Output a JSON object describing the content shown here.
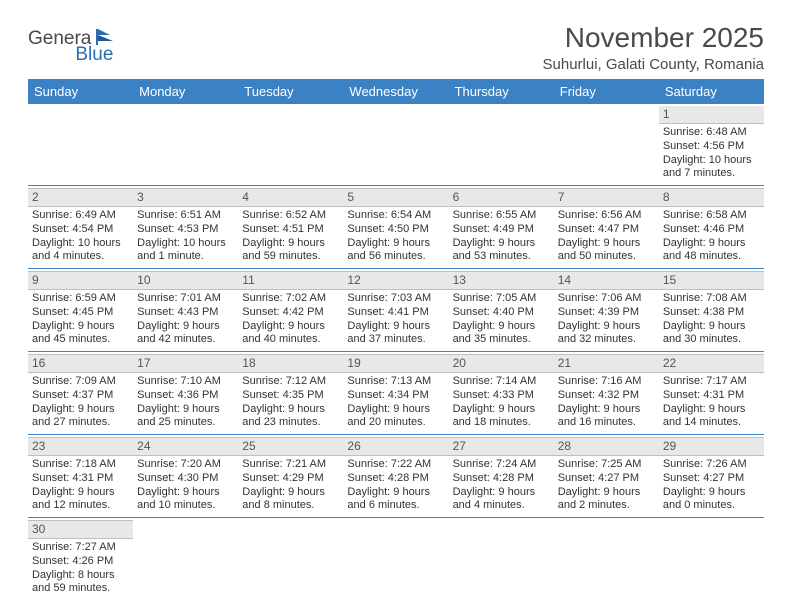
{
  "logo": {
    "text1": "Genera",
    "text2": "Blue"
  },
  "title": "November 2025",
  "location": "Suhurlui, Galati County, Romania",
  "colors": {
    "header_bg": "#3b82c4",
    "header_fg": "#ffffff",
    "daynum_bg": "#e8e8e8",
    "border": "#3b82c4",
    "text": "#333333"
  },
  "day_headers": [
    "Sunday",
    "Monday",
    "Tuesday",
    "Wednesday",
    "Thursday",
    "Friday",
    "Saturday"
  ],
  "weeks": [
    [
      null,
      null,
      null,
      null,
      null,
      null,
      {
        "n": "1",
        "sr": "Sunrise: 6:48 AM",
        "ss": "Sunset: 4:56 PM",
        "d1": "Daylight: 10 hours",
        "d2": "and 7 minutes."
      }
    ],
    [
      {
        "n": "2",
        "sr": "Sunrise: 6:49 AM",
        "ss": "Sunset: 4:54 PM",
        "d1": "Daylight: 10 hours",
        "d2": "and 4 minutes."
      },
      {
        "n": "3",
        "sr": "Sunrise: 6:51 AM",
        "ss": "Sunset: 4:53 PM",
        "d1": "Daylight: 10 hours",
        "d2": "and 1 minute."
      },
      {
        "n": "4",
        "sr": "Sunrise: 6:52 AM",
        "ss": "Sunset: 4:51 PM",
        "d1": "Daylight: 9 hours",
        "d2": "and 59 minutes."
      },
      {
        "n": "5",
        "sr": "Sunrise: 6:54 AM",
        "ss": "Sunset: 4:50 PM",
        "d1": "Daylight: 9 hours",
        "d2": "and 56 minutes."
      },
      {
        "n": "6",
        "sr": "Sunrise: 6:55 AM",
        "ss": "Sunset: 4:49 PM",
        "d1": "Daylight: 9 hours",
        "d2": "and 53 minutes."
      },
      {
        "n": "7",
        "sr": "Sunrise: 6:56 AM",
        "ss": "Sunset: 4:47 PM",
        "d1": "Daylight: 9 hours",
        "d2": "and 50 minutes."
      },
      {
        "n": "8",
        "sr": "Sunrise: 6:58 AM",
        "ss": "Sunset: 4:46 PM",
        "d1": "Daylight: 9 hours",
        "d2": "and 48 minutes."
      }
    ],
    [
      {
        "n": "9",
        "sr": "Sunrise: 6:59 AM",
        "ss": "Sunset: 4:45 PM",
        "d1": "Daylight: 9 hours",
        "d2": "and 45 minutes."
      },
      {
        "n": "10",
        "sr": "Sunrise: 7:01 AM",
        "ss": "Sunset: 4:43 PM",
        "d1": "Daylight: 9 hours",
        "d2": "and 42 minutes."
      },
      {
        "n": "11",
        "sr": "Sunrise: 7:02 AM",
        "ss": "Sunset: 4:42 PM",
        "d1": "Daylight: 9 hours",
        "d2": "and 40 minutes."
      },
      {
        "n": "12",
        "sr": "Sunrise: 7:03 AM",
        "ss": "Sunset: 4:41 PM",
        "d1": "Daylight: 9 hours",
        "d2": "and 37 minutes."
      },
      {
        "n": "13",
        "sr": "Sunrise: 7:05 AM",
        "ss": "Sunset: 4:40 PM",
        "d1": "Daylight: 9 hours",
        "d2": "and 35 minutes."
      },
      {
        "n": "14",
        "sr": "Sunrise: 7:06 AM",
        "ss": "Sunset: 4:39 PM",
        "d1": "Daylight: 9 hours",
        "d2": "and 32 minutes."
      },
      {
        "n": "15",
        "sr": "Sunrise: 7:08 AM",
        "ss": "Sunset: 4:38 PM",
        "d1": "Daylight: 9 hours",
        "d2": "and 30 minutes."
      }
    ],
    [
      {
        "n": "16",
        "sr": "Sunrise: 7:09 AM",
        "ss": "Sunset: 4:37 PM",
        "d1": "Daylight: 9 hours",
        "d2": "and 27 minutes."
      },
      {
        "n": "17",
        "sr": "Sunrise: 7:10 AM",
        "ss": "Sunset: 4:36 PM",
        "d1": "Daylight: 9 hours",
        "d2": "and 25 minutes."
      },
      {
        "n": "18",
        "sr": "Sunrise: 7:12 AM",
        "ss": "Sunset: 4:35 PM",
        "d1": "Daylight: 9 hours",
        "d2": "and 23 minutes."
      },
      {
        "n": "19",
        "sr": "Sunrise: 7:13 AM",
        "ss": "Sunset: 4:34 PM",
        "d1": "Daylight: 9 hours",
        "d2": "and 20 minutes."
      },
      {
        "n": "20",
        "sr": "Sunrise: 7:14 AM",
        "ss": "Sunset: 4:33 PM",
        "d1": "Daylight: 9 hours",
        "d2": "and 18 minutes."
      },
      {
        "n": "21",
        "sr": "Sunrise: 7:16 AM",
        "ss": "Sunset: 4:32 PM",
        "d1": "Daylight: 9 hours",
        "d2": "and 16 minutes."
      },
      {
        "n": "22",
        "sr": "Sunrise: 7:17 AM",
        "ss": "Sunset: 4:31 PM",
        "d1": "Daylight: 9 hours",
        "d2": "and 14 minutes."
      }
    ],
    [
      {
        "n": "23",
        "sr": "Sunrise: 7:18 AM",
        "ss": "Sunset: 4:31 PM",
        "d1": "Daylight: 9 hours",
        "d2": "and 12 minutes."
      },
      {
        "n": "24",
        "sr": "Sunrise: 7:20 AM",
        "ss": "Sunset: 4:30 PM",
        "d1": "Daylight: 9 hours",
        "d2": "and 10 minutes."
      },
      {
        "n": "25",
        "sr": "Sunrise: 7:21 AM",
        "ss": "Sunset: 4:29 PM",
        "d1": "Daylight: 9 hours",
        "d2": "and 8 minutes."
      },
      {
        "n": "26",
        "sr": "Sunrise: 7:22 AM",
        "ss": "Sunset: 4:28 PM",
        "d1": "Daylight: 9 hours",
        "d2": "and 6 minutes."
      },
      {
        "n": "27",
        "sr": "Sunrise: 7:24 AM",
        "ss": "Sunset: 4:28 PM",
        "d1": "Daylight: 9 hours",
        "d2": "and 4 minutes."
      },
      {
        "n": "28",
        "sr": "Sunrise: 7:25 AM",
        "ss": "Sunset: 4:27 PM",
        "d1": "Daylight: 9 hours",
        "d2": "and 2 minutes."
      },
      {
        "n": "29",
        "sr": "Sunrise: 7:26 AM",
        "ss": "Sunset: 4:27 PM",
        "d1": "Daylight: 9 hours",
        "d2": "and 0 minutes."
      }
    ],
    [
      {
        "n": "30",
        "sr": "Sunrise: 7:27 AM",
        "ss": "Sunset: 4:26 PM",
        "d1": "Daylight: 8 hours",
        "d2": "and 59 minutes."
      },
      null,
      null,
      null,
      null,
      null,
      null
    ]
  ]
}
